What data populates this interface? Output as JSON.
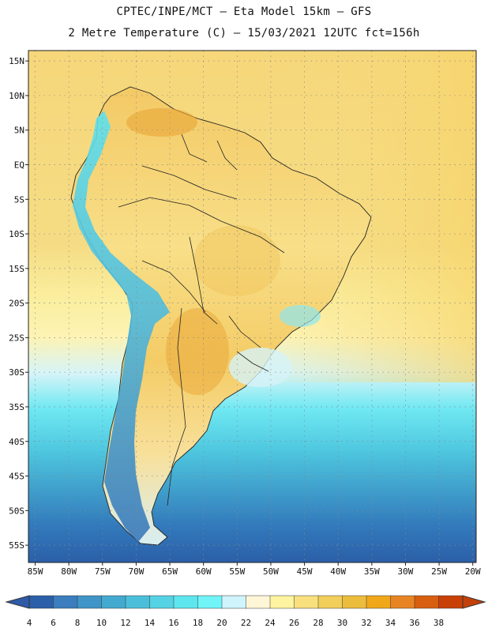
{
  "header": {
    "line1": "CPTEC/INPE/MCT –  Eta Model 15km – GFS",
    "line2": "2 Metre Temperature (C) – 15/03/2021 12UTC fct=156h"
  },
  "map": {
    "lon_labels": [
      "85W",
      "80W",
      "75W",
      "70W",
      "65W",
      "60W",
      "55W",
      "50W",
      "45W",
      "40W",
      "35W",
      "30W",
      "25W",
      "20W"
    ],
    "lat_labels": [
      "15N",
      "10N",
      "5N",
      "EQ",
      "5S",
      "10S",
      "15S",
      "20S",
      "25S",
      "30S",
      "35S",
      "40S",
      "45S",
      "50S",
      "55S"
    ],
    "extent": {
      "lon": [
        -86,
        -19.5
      ],
      "lat": [
        16.5,
        -57.5
      ]
    }
  },
  "colorbar": {
    "labels": [
      "4",
      "6",
      "8",
      "10",
      "12",
      "14",
      "16",
      "18",
      "20",
      "22",
      "24",
      "26",
      "28",
      "30",
      "32",
      "34",
      "36",
      "38"
    ],
    "colors": [
      "#2b5fa8",
      "#3b7dbd",
      "#3f95c7",
      "#43a9cf",
      "#4bbfd9",
      "#55d2e3",
      "#5ee6ee",
      "#70f4f8",
      "#d0f4fb",
      "#fff6d8",
      "#fdf3a0",
      "#f8e07e",
      "#f2cf5b",
      "#ecbd3c",
      "#f0a81a",
      "#e88422",
      "#d85e10",
      "#c84006"
    ],
    "left_arrow_color": "#2e5aa8",
    "right_arrow_color": "#c4400a"
  }
}
